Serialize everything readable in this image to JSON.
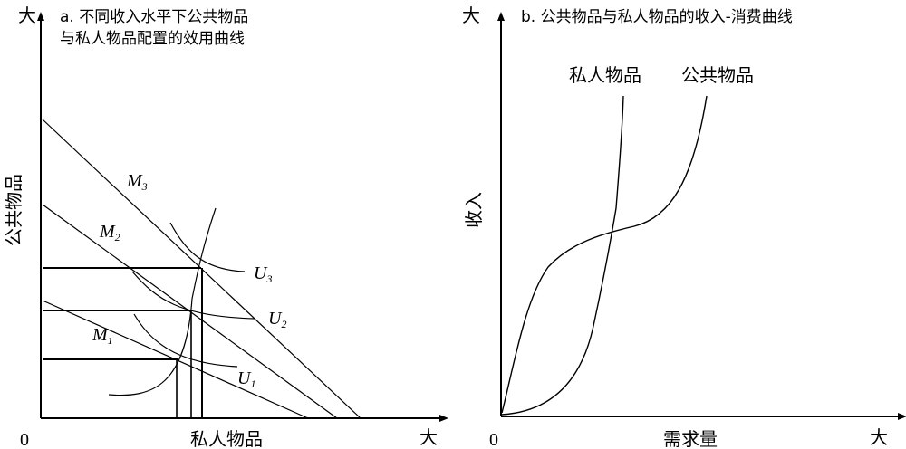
{
  "panel_a": {
    "title_line1": "a. 不同收入水平下公共物品",
    "title_line2": "与私人物品配置的效用曲线",
    "y_axis_label": "公共物品",
    "x_axis_label": "私人物品",
    "y_axis_end": "大",
    "x_axis_end": "大",
    "origin": "0",
    "budget_lines": [
      {
        "label": "M",
        "sub": "1"
      },
      {
        "label": "M",
        "sub": "2"
      },
      {
        "label": "M",
        "sub": "3"
      }
    ],
    "indifference_curves": [
      {
        "label": "U",
        "sub": "1"
      },
      {
        "label": "U",
        "sub": "2"
      },
      {
        "label": "U",
        "sub": "3"
      }
    ]
  },
  "panel_b": {
    "title": "b. 公共物品与私人物品的收入-消费曲线",
    "y_axis_label": "收入",
    "x_axis_label": "需求量",
    "y_axis_end": "大",
    "x_axis_end": "大",
    "origin": "0",
    "curve_private_label": "私人物品",
    "curve_public_label": "公共物品"
  }
}
